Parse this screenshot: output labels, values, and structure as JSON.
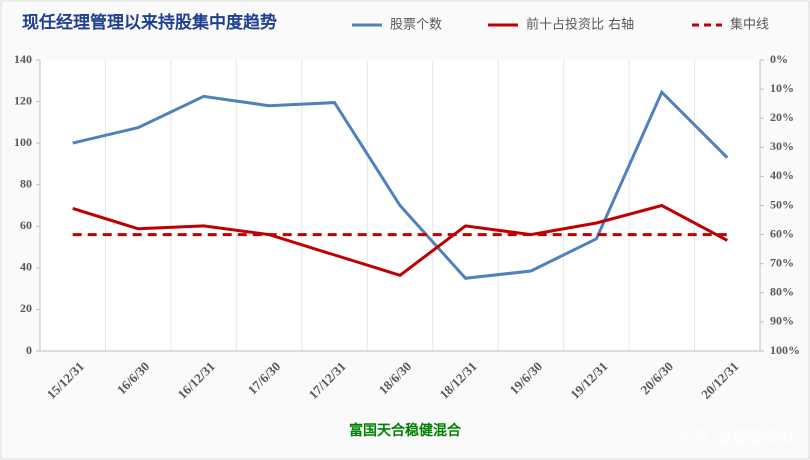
{
  "chart_data": {
    "type": "line",
    "title": "现任经理管理以来持股集中度趋势",
    "x_label": "富国天合稳健混合",
    "watermark": "头条 @宏赫臻财",
    "categories": [
      "15/12/31",
      "16/6/30",
      "16/12/31",
      "17/6/30",
      "17/12/31",
      "18/6/30",
      "18/12/31",
      "19/6/30",
      "19/12/31",
      "20/6/30",
      "20/12/31"
    ],
    "series": [
      {
        "name": "股票个数",
        "color": "#4f81bd",
        "values": [
          100,
          107.5,
          122.5,
          118,
          119.5,
          70,
          35,
          38.5,
          54,
          124.5,
          93
        ]
      },
      {
        "name": "前十占投资比 右轴",
        "color": "#c00000",
        "axis": "y2",
        "values": [
          51,
          58,
          57,
          60,
          67,
          74,
          57,
          60,
          56,
          50,
          62
        ]
      },
      {
        "name": "集中线",
        "color": "#c00000",
        "axis": "y2",
        "dashed": true,
        "values": [
          60,
          60,
          60,
          60,
          60,
          60,
          60,
          60,
          60,
          60,
          60
        ]
      }
    ],
    "ylim": [
      0,
      140
    ],
    "yticks": [
      0,
      20,
      40,
      60,
      80,
      100,
      120,
      140
    ],
    "y2lim": [
      100,
      0
    ],
    "y2ticks": [
      {
        "value": 0,
        "label": "0%"
      },
      {
        "value": 10,
        "label": "10%"
      },
      {
        "value": 20,
        "label": "20%"
      },
      {
        "value": 30,
        "label": "30%"
      },
      {
        "value": 40,
        "label": "40%"
      },
      {
        "value": 50,
        "label": "50%"
      },
      {
        "value": 60,
        "label": "60%"
      },
      {
        "value": 70,
        "label": "70%"
      },
      {
        "value": 80,
        "label": "80%"
      },
      {
        "value": 90,
        "label": "90%"
      },
      {
        "value": 100,
        "label": "100%"
      }
    ]
  }
}
